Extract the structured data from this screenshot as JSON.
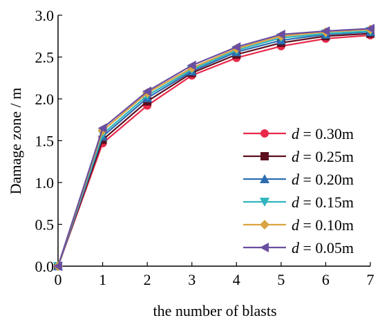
{
  "chart_data": {
    "type": "line",
    "xlabel": "the number of blasts",
    "ylabel": "Damage zone / m",
    "xlim": [
      0,
      7
    ],
    "ylim": [
      0,
      3.0
    ],
    "x_ticks": [
      "0",
      "1",
      "2",
      "3",
      "4",
      "5",
      "6",
      "7"
    ],
    "y_ticks": [
      "0.0",
      "0.5",
      "1.0",
      "1.5",
      "2.0",
      "2.5",
      "3.0"
    ],
    "x": [
      0,
      1,
      2,
      3,
      4,
      5,
      6,
      7
    ],
    "grid": false,
    "legend_position": "bottom-right",
    "series": [
      {
        "var": "d",
        "eq": " = ",
        "name": "0.30m",
        "color": "#e8294a",
        "marker": "circle",
        "values": [
          0,
          1.47,
          1.92,
          2.28,
          2.49,
          2.63,
          2.72,
          2.76
        ]
      },
      {
        "var": "d",
        "eq": " = ",
        "name": "0.25m",
        "color": "#5c0f1e",
        "marker": "square",
        "values": [
          0,
          1.51,
          1.97,
          2.31,
          2.53,
          2.67,
          2.75,
          2.78
        ]
      },
      {
        "var": "d",
        "eq": " = ",
        "name": "0.20m",
        "color": "#2b6cb0",
        "marker": "triangle-up",
        "values": [
          0,
          1.55,
          2.01,
          2.33,
          2.56,
          2.7,
          2.77,
          2.8
        ]
      },
      {
        "var": "d",
        "eq": " = ",
        "name": "0.15m",
        "color": "#2fb5be",
        "marker": "triangle-down",
        "values": [
          0,
          1.58,
          2.04,
          2.35,
          2.58,
          2.73,
          2.78,
          2.81
        ]
      },
      {
        "var": "d",
        "eq": " = ",
        "name": "0.10m",
        "color": "#d9a441",
        "marker": "diamond",
        "values": [
          0,
          1.62,
          2.07,
          2.37,
          2.6,
          2.75,
          2.8,
          2.83
        ]
      },
      {
        "var": "d",
        "eq": " = ",
        "name": "0.05m",
        "color": "#6a4ea0",
        "marker": "triangle-left",
        "values": [
          0,
          1.65,
          2.09,
          2.4,
          2.62,
          2.77,
          2.81,
          2.84
        ]
      }
    ]
  }
}
